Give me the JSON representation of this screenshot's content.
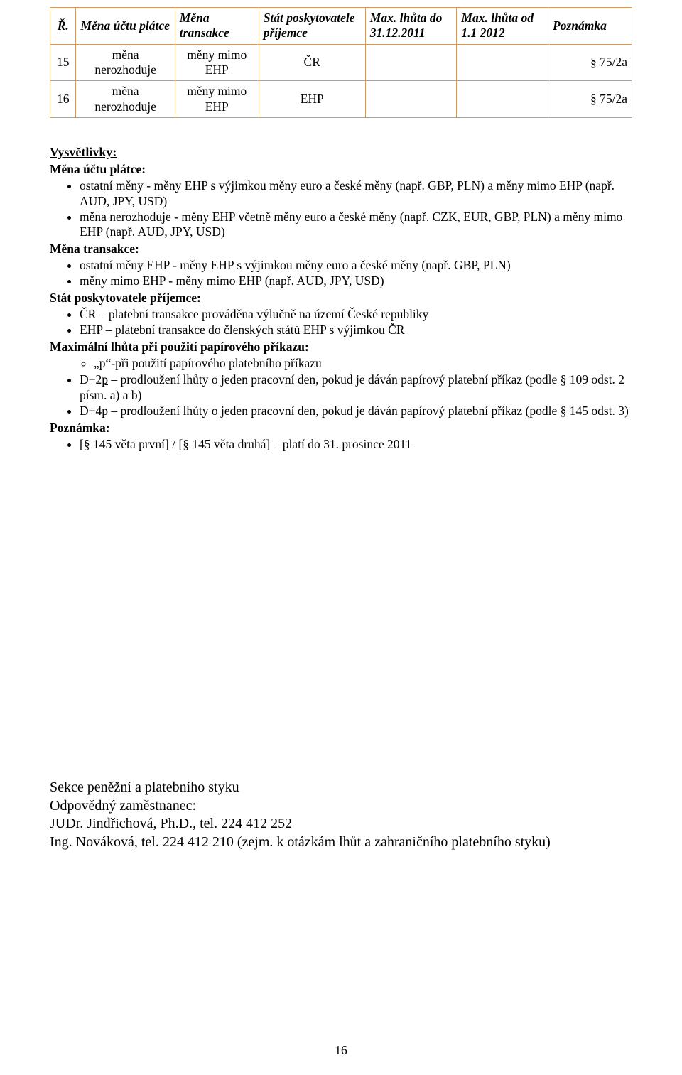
{
  "colors": {
    "table_border": "#cd9966",
    "background": "#ffffff",
    "text": "#000000"
  },
  "typography": {
    "body_family": "Times New Roman",
    "body_size_pt": 13,
    "footer_size_pt": 15
  },
  "table": {
    "headers": {
      "r": "Ř.",
      "a": "Měna účtu plátce",
      "b": "Měna transakce",
      "c": "Stát poskytovatele příjemce",
      "d": "Max. lhůta do 31.12.2011",
      "e": "Max. lhůta od 1.1 2012",
      "f": "Poznámka"
    },
    "rows": [
      {
        "r": "15",
        "a": "měna nerozhoduje",
        "b": "měny mimo EHP",
        "c": "ČR",
        "d": "",
        "e": "",
        "f": "§ 75/2a"
      },
      {
        "r": "16",
        "a": "měna nerozhoduje",
        "b": "měny mimo EHP",
        "c": "EHP",
        "d": "",
        "e": "",
        "f": "§ 75/2a"
      }
    ]
  },
  "notes": {
    "title": "Vysvětlivky:",
    "mena_uctu_platce_h": "Měna účtu plátce:",
    "mup_b1": "ostatní měny - měny EHP s výjimkou měny euro a české měny (např. GBP, PLN) a měny mimo EHP (např. AUD, JPY, USD)",
    "mup_b2": "měna nerozhoduje - měny EHP včetně měny euro a české měny (např. CZK, EUR, GBP, PLN) a měny mimo EHP (např. AUD, JPY, USD)",
    "mena_transakce_h": "Měna transakce:",
    "mt_b1": "ostatní měny EHP - měny EHP s výjimkou měny euro a české měny (např. GBP, PLN)",
    "mt_b2": "měny mimo EHP - měny mimo EHP (např. AUD, JPY, USD)",
    "stat_h": "Stát poskytovatele příjemce:",
    "st_b1": "ČR – platební transakce prováděna výlučně na území České republiky",
    "st_b2": "EHP – platební transakce do členských států EHP s výjimkou ČR",
    "max_h": "Maximální lhůta při použití papírového příkazu:",
    "max_o1_full": "„p“-při použití papírového platebního příkazu",
    "max_b2_pref": "D+2",
    "max_b2_u": "p",
    "max_b2_suf": " – prodloužení lhůty o jeden pracovní den, pokud je dáván papírový platební příkaz (podle § 109 odst. 2 písm. a) a b)",
    "max_b3_pref": "D+4",
    "max_b3_u": "p",
    "max_b3_suf": " – prodloužení lhůty o jeden pracovní den, pokud je dáván papírový platební příkaz (podle § 145 odst. 3)",
    "poznamka_h": "Poznámka:",
    "pz_b1": "[§ 145 věta první] / [§ 145 věta druhá] – platí do 31. prosince 2011"
  },
  "footer": {
    "l1": "Sekce peněžní a platebního styku",
    "l2": "Odpovědný zaměstnanec:",
    "l3": "JUDr. Jindřichová, Ph.D., tel. 224 412 252",
    "l4": "Ing. Nováková, tel. 224 412 210 (zejm. k otázkám lhůt a zahraničního platebního styku)"
  },
  "page_number": "16"
}
